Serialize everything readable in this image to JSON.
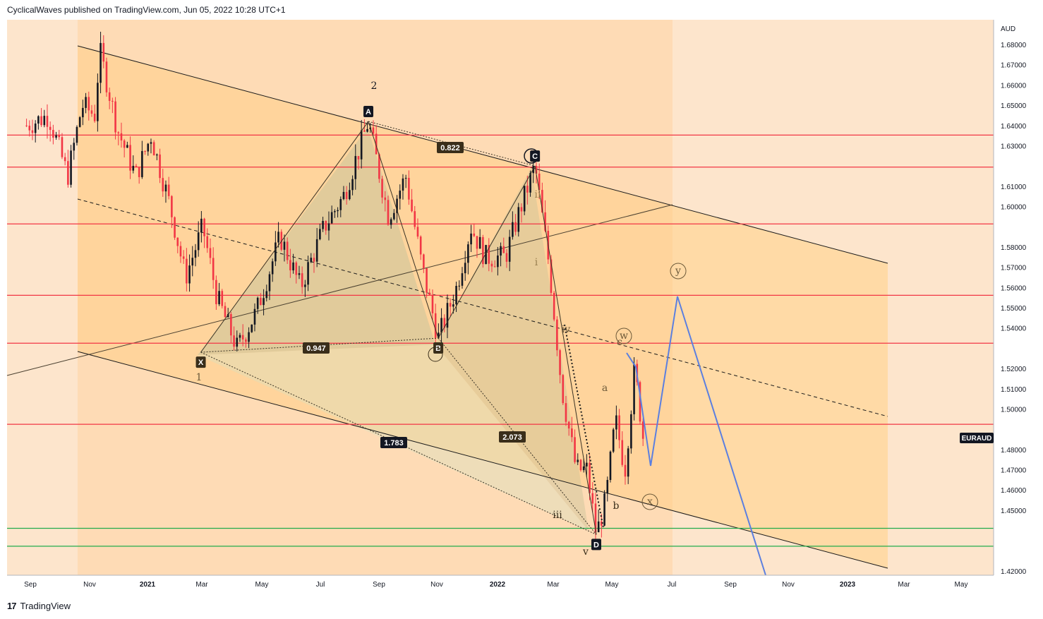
{
  "header": {
    "published_text": "CyclicalWaves published on TradingView.com, Jun 05, 2022 10:28 UTC+1"
  },
  "footer": {
    "logo_mark": "17",
    "brand": "TradingView"
  },
  "chart_data": {
    "type": "candlestick",
    "symbol": "EURAUD",
    "currency": "AUD",
    "ylim": [
      1.415,
      1.69
    ],
    "y_ticks": [
      "1.68000",
      "1.67000",
      "1.66000",
      "1.65000",
      "1.64000",
      "1.63000",
      "1.61000",
      "1.60000",
      "1.58000",
      "1.57000",
      "1.56000",
      "1.55000",
      "1.54000",
      "1.52000",
      "1.51000",
      "1.50000",
      "1.48000",
      "1.47000",
      "1.46000",
      "1.45000",
      "1.42000"
    ],
    "x_ticks": [
      "Sep",
      "Nov",
      "2021",
      "Mar",
      "May",
      "Jul",
      "Sep",
      "Nov",
      "2022",
      "Mar",
      "May",
      "Jul",
      "Sep",
      "Nov",
      "2023",
      "Mar",
      "May"
    ],
    "horizontal_levels": [
      {
        "value": "1.63526",
        "color": "#f23645"
      },
      {
        "value": "1.61945",
        "color": "#f23645"
      },
      {
        "value": "1.59139",
        "color": "#f23645"
      },
      {
        "value": "1.55614",
        "color": "#f23645"
      },
      {
        "value": "1.53249",
        "color": "#f23645"
      },
      {
        "value": "1.49244",
        "color": "#f23645"
      },
      {
        "value": "1.44108",
        "color": "#22ab4b"
      },
      {
        "value": "1.43225",
        "color": "#22ab4b"
      }
    ],
    "current_price_label": "EURAUD",
    "pattern_points": [
      {
        "label": "X",
        "date": "2021-02-26",
        "price": 1.528
      },
      {
        "label": "A",
        "date": "2021-08-20",
        "price": 1.642
      },
      {
        "label": "B",
        "date": "2021-11-01",
        "price": 1.535
      },
      {
        "label": "C",
        "date": "2022-02-10",
        "price": 1.62
      },
      {
        "label": "D",
        "date": "2022-04-15",
        "price": 1.438
      }
    ],
    "ratios": [
      "0.822",
      "0.947",
      "1.783",
      "2.073"
    ],
    "wave_labels": [
      "2",
      "1",
      "iii",
      "iv",
      "v",
      "ii",
      "i",
      "a",
      "b",
      "c",
      "w",
      "x",
      "y"
    ],
    "projection": [
      {
        "date": "2022-06-15",
        "price": 1.473
      },
      {
        "date": "2022-07-08",
        "price": 1.556
      },
      {
        "date": "2022-10-20",
        "price": 1.415
      }
    ],
    "colors": {
      "up": "#131722",
      "down": "#f23645",
      "channel_fill": "#ffe0b2",
      "projection": "#5b7fe0",
      "pattern_fill": "#c8c0a0"
    }
  }
}
